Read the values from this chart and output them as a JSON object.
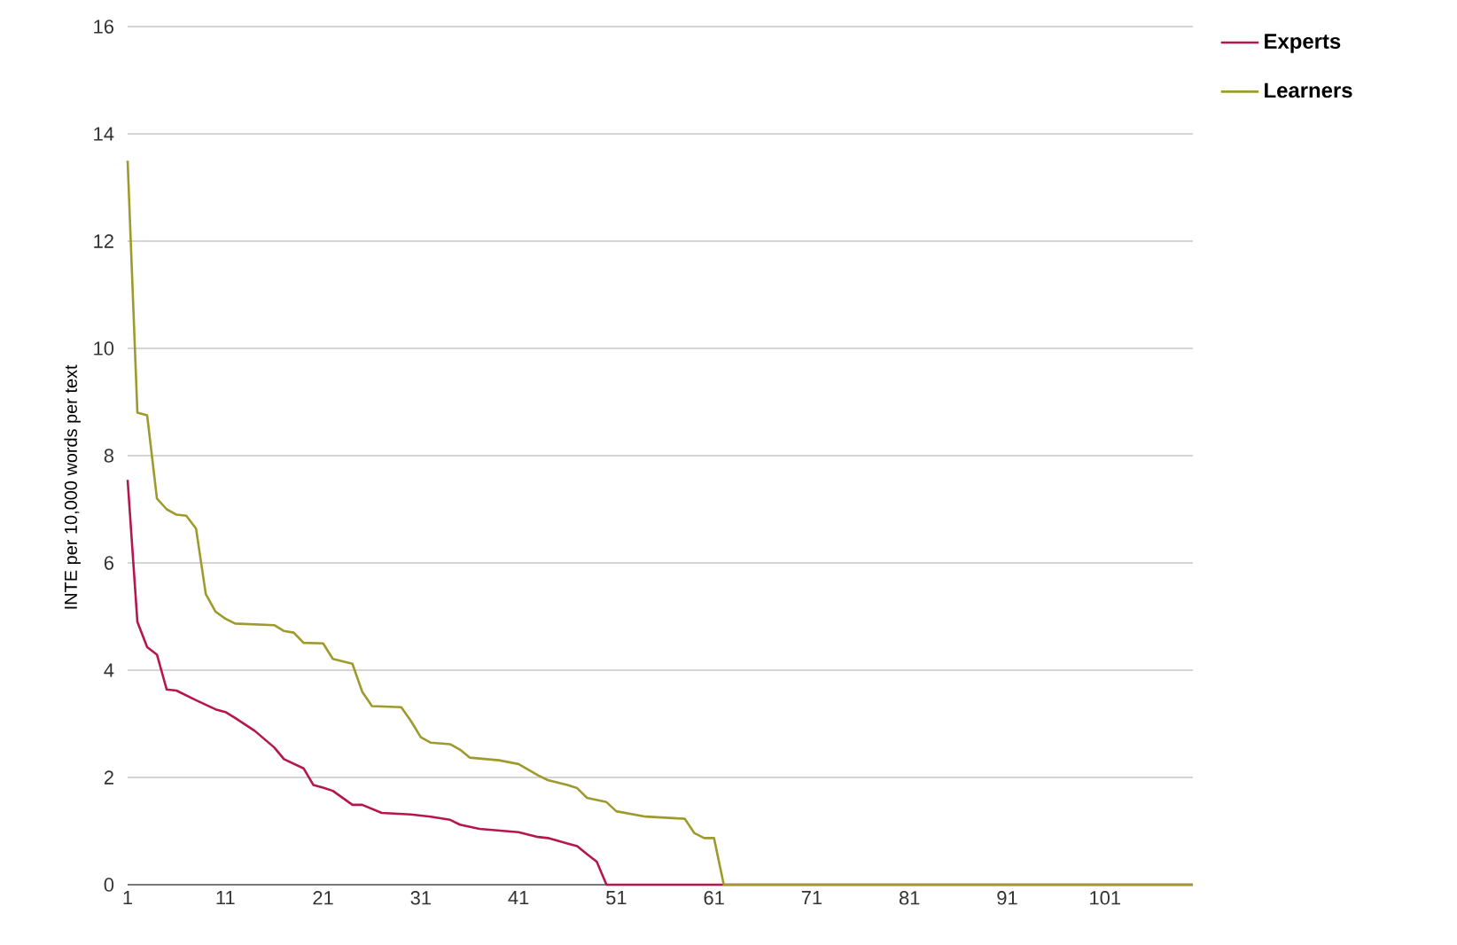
{
  "chart_data": {
    "type": "line",
    "ylabel": "INTE per 10,000 words per text",
    "xlim": [
      1,
      110
    ],
    "ylim": [
      0,
      16
    ],
    "xticks": [
      1,
      11,
      21,
      31,
      41,
      51,
      61,
      71,
      81,
      91,
      101
    ],
    "yticks": [
      0,
      2,
      4,
      6,
      8,
      10,
      12,
      14,
      16
    ],
    "grid": "y",
    "legend": "top right",
    "series": [
      {
        "name": "Experts",
        "color": "#b5174b",
        "x": [
          1,
          2,
          3,
          4,
          5,
          6,
          8,
          10,
          11,
          12,
          14,
          16,
          17,
          19,
          20,
          21,
          22,
          24,
          25,
          27,
          30,
          32,
          34,
          35,
          37,
          41,
          43,
          44,
          46,
          47,
          48,
          49,
          50,
          110
        ],
        "values": [
          7.55,
          4.9,
          4.43,
          4.29,
          3.64,
          3.62,
          3.44,
          3.27,
          3.22,
          3.11,
          2.87,
          2.56,
          2.34,
          2.17,
          1.86,
          1.81,
          1.75,
          1.49,
          1.49,
          1.34,
          1.31,
          1.27,
          1.21,
          1.12,
          1.04,
          0.98,
          0.89,
          0.87,
          0.77,
          0.72,
          0.57,
          0.43,
          0,
          0
        ]
      },
      {
        "name": "Learners",
        "color": "#9e9a2c",
        "x": [
          1,
          2,
          3,
          4,
          5,
          6,
          7,
          8,
          9,
          10,
          11,
          12,
          16,
          17,
          18,
          19,
          21,
          22,
          24,
          25,
          26,
          29,
          30,
          31,
          32,
          34,
          35,
          36,
          39,
          41,
          43,
          44,
          46,
          47,
          48,
          50,
          51,
          54,
          58,
          59,
          60,
          61,
          62,
          110
        ],
        "values": [
          13.5,
          8.8,
          8.75,
          7.2,
          7.0,
          6.9,
          6.88,
          6.64,
          5.42,
          5.09,
          4.96,
          4.87,
          4.84,
          4.73,
          4.7,
          4.51,
          4.5,
          4.21,
          4.12,
          3.6,
          3.33,
          3.31,
          3.05,
          2.75,
          2.65,
          2.62,
          2.52,
          2.37,
          2.32,
          2.25,
          2.04,
          1.95,
          1.86,
          1.8,
          1.62,
          1.54,
          1.37,
          1.27,
          1.23,
          0.96,
          0.87,
          0.87,
          0,
          0
        ]
      }
    ]
  }
}
